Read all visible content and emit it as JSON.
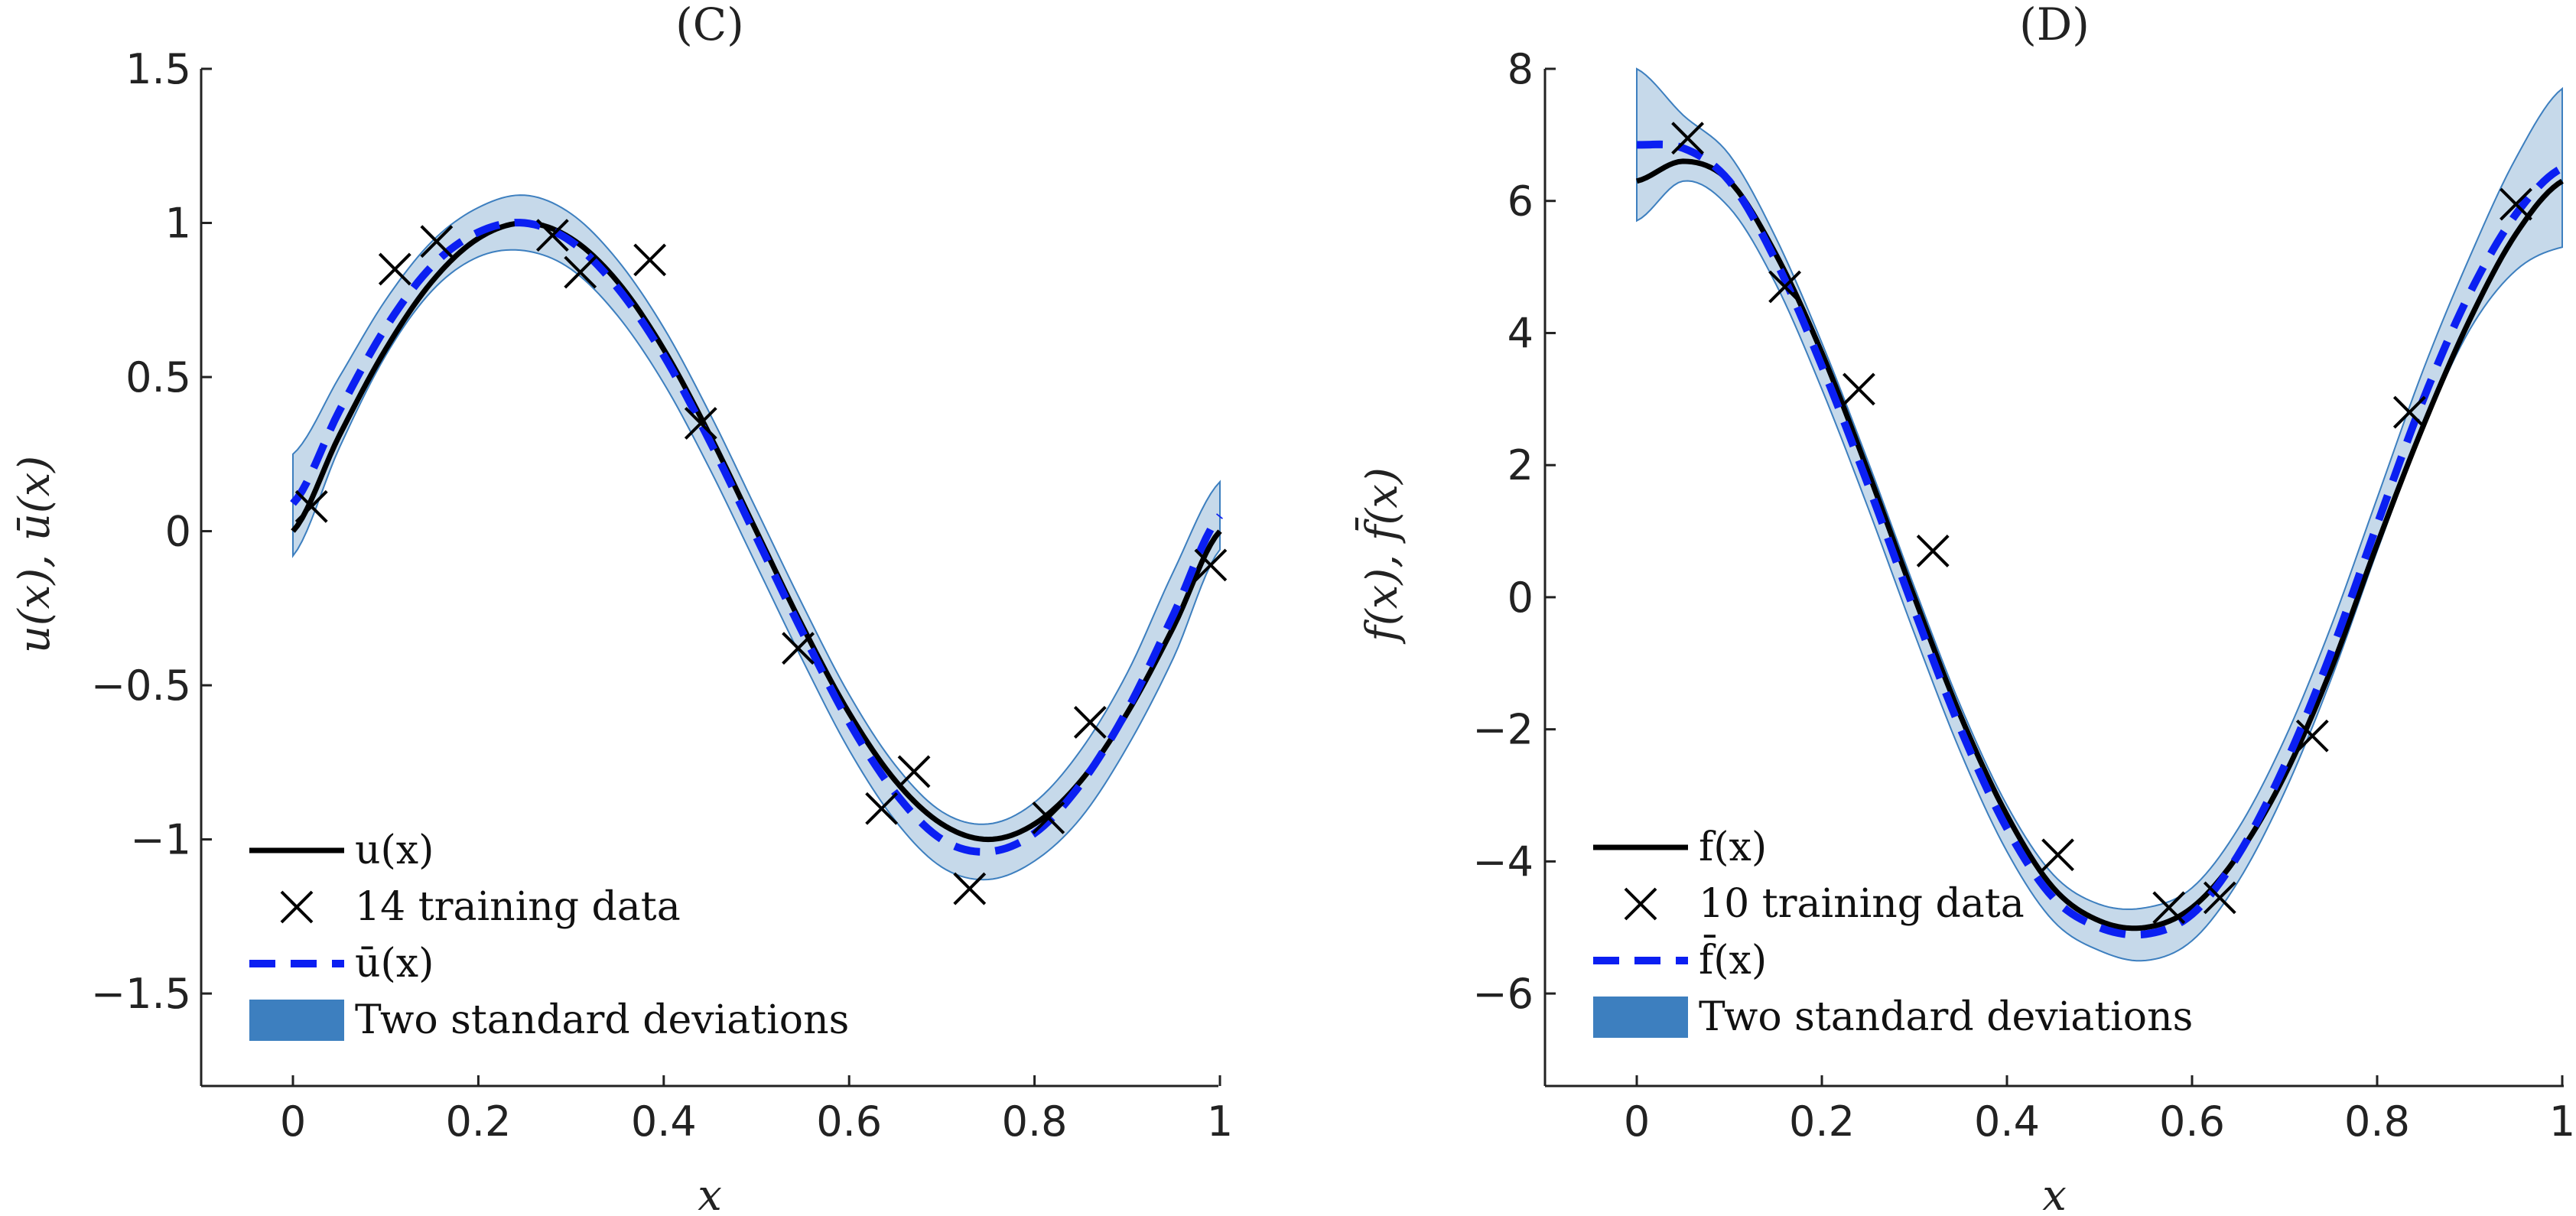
{
  "colors": {
    "band_fill": "#c6d9ea",
    "band_edge": "#3d7fbf",
    "legend_band": "#3d7fbf",
    "mean_line": "#0b1ff2",
    "true_line": "#000000",
    "marker": "#000000",
    "axis": "#222222"
  },
  "chart_data": [
    {
      "type": "line",
      "panel": "C",
      "title": "(C)",
      "xlabel": "x",
      "ylabel": "u(x), ū(x)",
      "xlim": [
        -0.1,
        1.0
      ],
      "ylim": [
        -1.8,
        1.5
      ],
      "xticks": [
        0,
        0.2,
        0.4,
        0.6,
        0.8,
        1
      ],
      "xtick_labels": [
        "0",
        "0.2",
        "0.4",
        "0.6",
        "0.8",
        "1"
      ],
      "yticks": [
        -1.5,
        -1,
        -0.5,
        0,
        0.5,
        1,
        1.5
      ],
      "ytick_labels": [
        "−1.5",
        "−1",
        "−0.5",
        "0",
        "0.5",
        "1",
        "1.5"
      ],
      "legend": [
        "u(x)",
        "14 training data",
        "ū(x)",
        "Two standard deviations"
      ],
      "legend_position": "bottom-left",
      "true_fn": {
        "name": "u(x)",
        "formula": "sin(2πx)",
        "x": [
          0,
          0.05,
          0.1,
          0.15,
          0.2,
          0.25,
          0.3,
          0.35,
          0.4,
          0.45,
          0.5,
          0.55,
          0.6,
          0.65,
          0.7,
          0.75,
          0.8,
          0.85,
          0.9,
          0.95,
          1.0
        ],
        "y": [
          0,
          0.31,
          0.59,
          0.81,
          0.95,
          1.0,
          0.95,
          0.81,
          0.59,
          0.31,
          0,
          -0.31,
          -0.59,
          -0.81,
          -0.95,
          -1.0,
          -0.95,
          -0.81,
          -0.59,
          -0.31,
          0
        ]
      },
      "mean": {
        "name": "ū(x)",
        "x": [
          0,
          0.05,
          0.1,
          0.15,
          0.2,
          0.25,
          0.3,
          0.35,
          0.4,
          0.45,
          0.5,
          0.55,
          0.6,
          0.65,
          0.7,
          0.75,
          0.8,
          0.85,
          0.9,
          0.95,
          1.0
        ],
        "y": [
          0.09,
          0.39,
          0.66,
          0.86,
          0.97,
          1.0,
          0.94,
          0.79,
          0.57,
          0.29,
          -0.02,
          -0.33,
          -0.62,
          -0.85,
          -1.0,
          -1.04,
          -0.98,
          -0.82,
          -0.58,
          -0.27,
          0.05
        ]
      },
      "band": {
        "name": "Two standard deviations",
        "x": [
          0,
          0.05,
          0.1,
          0.15,
          0.2,
          0.25,
          0.3,
          0.35,
          0.4,
          0.45,
          0.5,
          0.55,
          0.6,
          0.65,
          0.7,
          0.75,
          0.8,
          0.85,
          0.9,
          0.95,
          1.0
        ],
        "upper": [
          0.25,
          0.5,
          0.75,
          0.94,
          1.05,
          1.09,
          1.03,
          0.88,
          0.66,
          0.38,
          0.07,
          -0.24,
          -0.53,
          -0.76,
          -0.91,
          -0.95,
          -0.88,
          -0.71,
          -0.46,
          -0.13,
          0.16
        ],
        "lower": [
          -0.08,
          0.27,
          0.57,
          0.78,
          0.89,
          0.91,
          0.85,
          0.7,
          0.48,
          0.2,
          -0.11,
          -0.42,
          -0.71,
          -0.94,
          -1.09,
          -1.13,
          -1.07,
          -0.93,
          -0.7,
          -0.41,
          -0.06
        ]
      },
      "training": {
        "name": "14 training data",
        "x": [
          0.02,
          0.11,
          0.155,
          0.28,
          0.31,
          0.385,
          0.44,
          0.545,
          0.635,
          0.67,
          0.73,
          0.815,
          0.86,
          0.99
        ],
        "y": [
          0.08,
          0.85,
          0.94,
          0.96,
          0.84,
          0.88,
          0.35,
          -0.38,
          -0.9,
          -0.78,
          -1.16,
          -0.93,
          -0.62,
          -0.11
        ]
      }
    },
    {
      "type": "line",
      "panel": "D",
      "title": "(D)",
      "xlabel": "x",
      "ylabel": "f(x), f̄(x)",
      "xlim": [
        -0.1,
        1.0
      ],
      "ylim": [
        -7.4,
        8.0
      ],
      "xticks": [
        0,
        0.2,
        0.4,
        0.6,
        0.8,
        1
      ],
      "xtick_labels": [
        "0",
        "0.2",
        "0.4",
        "0.6",
        "0.8",
        "1"
      ],
      "yticks": [
        -6,
        -4,
        -2,
        0,
        2,
        4,
        6,
        8
      ],
      "ytick_labels": [
        "−6",
        "−4",
        "−2",
        "0",
        "2",
        "4",
        "6",
        "8"
      ],
      "legend": [
        "f(x)",
        "10 training data",
        "f̄(x)",
        "Two standard deviations"
      ],
      "legend_position": "bottom-left",
      "true_fn": {
        "name": "f(x)",
        "x": [
          0,
          0.05,
          0.1,
          0.15,
          0.2,
          0.25,
          0.3,
          0.35,
          0.4,
          0.45,
          0.5,
          0.55,
          0.6,
          0.65,
          0.7,
          0.75,
          0.8,
          0.85,
          0.9,
          0.95,
          1.0
        ],
        "y": [
          6.3,
          6.6,
          6.3,
          5.2,
          3.7,
          1.9,
          0.0,
          -1.8,
          -3.3,
          -4.4,
          -4.9,
          -5.0,
          -4.7,
          -3.9,
          -2.7,
          -1.1,
          0.8,
          2.6,
          4.2,
          5.5,
          6.3
        ]
      },
      "mean": {
        "name": "f̄(x)",
        "x": [
          0,
          0.05,
          0.1,
          0.15,
          0.2,
          0.25,
          0.3,
          0.35,
          0.4,
          0.45,
          0.5,
          0.55,
          0.6,
          0.65,
          0.7,
          0.75,
          0.8,
          0.85,
          0.9,
          0.95,
          1.0
        ],
        "y": [
          6.85,
          6.8,
          6.3,
          5.1,
          3.5,
          1.7,
          -0.2,
          -2.0,
          -3.5,
          -4.55,
          -5.0,
          -5.1,
          -4.8,
          -3.9,
          -2.55,
          -0.85,
          1.1,
          3.0,
          4.6,
          5.8,
          6.5
        ]
      },
      "band": {
        "name": "Two standard deviations",
        "x": [
          0,
          0.05,
          0.1,
          0.15,
          0.2,
          0.25,
          0.3,
          0.35,
          0.4,
          0.45,
          0.5,
          0.55,
          0.6,
          0.65,
          0.7,
          0.75,
          0.8,
          0.85,
          0.9,
          0.95,
          1.0
        ],
        "upper": [
          8.0,
          7.3,
          6.7,
          5.45,
          3.85,
          2.05,
          0.15,
          -1.65,
          -3.15,
          -4.2,
          -4.65,
          -4.7,
          -4.4,
          -3.5,
          -2.15,
          -0.45,
          1.5,
          3.45,
          5.15,
          6.65,
          7.7
        ],
        "lower": [
          5.7,
          6.3,
          5.9,
          4.75,
          3.15,
          1.35,
          -0.55,
          -2.35,
          -3.85,
          -4.9,
          -5.35,
          -5.5,
          -5.2,
          -4.3,
          -2.95,
          -1.25,
          0.7,
          2.55,
          4.05,
          4.95,
          5.3
        ]
      },
      "training": {
        "name": "10 training data",
        "x": [
          0.055,
          0.16,
          0.24,
          0.32,
          0.455,
          0.575,
          0.63,
          0.73,
          0.835,
          0.95
        ],
        "y": [
          6.95,
          4.7,
          3.15,
          0.7,
          -3.9,
          -4.7,
          -4.55,
          -2.1,
          2.8,
          5.95
        ]
      }
    }
  ]
}
